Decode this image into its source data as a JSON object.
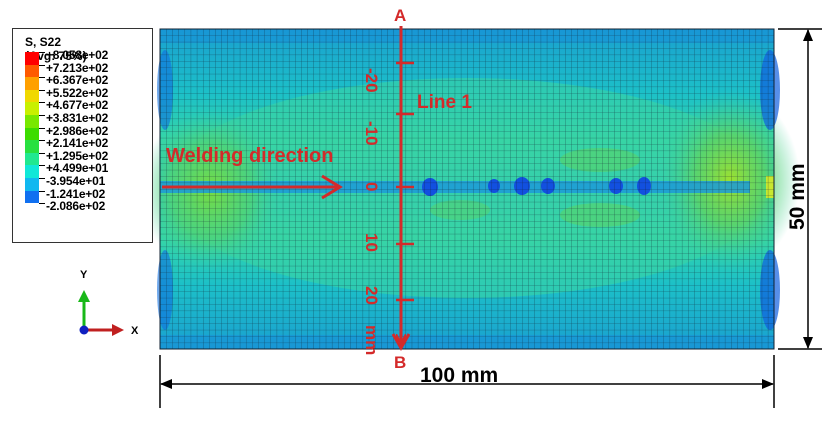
{
  "legend": {
    "title_line1": "S, S22",
    "title_line2": "(Avg: 75%)",
    "entries": [
      {
        "value": "+8.058e+02",
        "color": "#ff0000"
      },
      {
        "value": "+7.213e+02",
        "color": "#ff5a00"
      },
      {
        "value": "+6.367e+02",
        "color": "#ffa000"
      },
      {
        "value": "+5.522e+02",
        "color": "#f0d800"
      },
      {
        "value": "+4.677e+02",
        "color": "#c8f000"
      },
      {
        "value": "+3.831e+02",
        "color": "#78e800"
      },
      {
        "value": "+2.986e+02",
        "color": "#3cdc00"
      },
      {
        "value": "+2.141e+02",
        "color": "#28e040"
      },
      {
        "value": "+1.295e+02",
        "color": "#20e890"
      },
      {
        "value": "+4.499e+01",
        "color": "#10e8d8"
      },
      {
        "value": "-3.954e+01",
        "color": "#10b8f0"
      },
      {
        "value": "-1.241e+02",
        "color": "#1070f0"
      },
      {
        "value": "-2.086e+02",
        "color": "#0000e0"
      }
    ]
  },
  "triad": {
    "y_label": "Y",
    "x_label": "X"
  },
  "annotations": {
    "point_a": "A",
    "point_b": "B",
    "line_label": "Line 1",
    "welding_direction": "Welding direction",
    "width_dimension": "100 mm",
    "height_dimension": "50 mm",
    "scale_ticks": [
      "-20",
      "-10",
      "0",
      "10",
      "20"
    ],
    "scale_unit": "mm"
  },
  "colors": {
    "annotation_red": "#d42a2a",
    "mesh_line": "#1a2a3a",
    "field_base": "#19b4b4",
    "field_mid": "#34d6a6",
    "field_high": "#58d860"
  }
}
